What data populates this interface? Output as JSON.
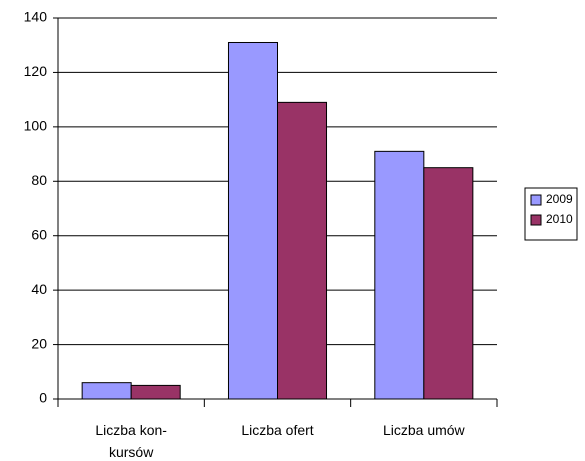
{
  "chart_data": {
    "type": "bar",
    "categories": [
      "Liczba kon-kursów",
      "Liczba ofert",
      "Liczba umów"
    ],
    "series": [
      {
        "name": "2009",
        "color": "#9999ff",
        "values": [
          6,
          131,
          91
        ]
      },
      {
        "name": "2010",
        "color": "#993366",
        "values": [
          5,
          109,
          85
        ]
      }
    ],
    "ylim": [
      0,
      140
    ],
    "yticks": [
      0,
      20,
      40,
      60,
      80,
      100,
      120,
      140
    ],
    "grid": true,
    "legend": "right"
  }
}
